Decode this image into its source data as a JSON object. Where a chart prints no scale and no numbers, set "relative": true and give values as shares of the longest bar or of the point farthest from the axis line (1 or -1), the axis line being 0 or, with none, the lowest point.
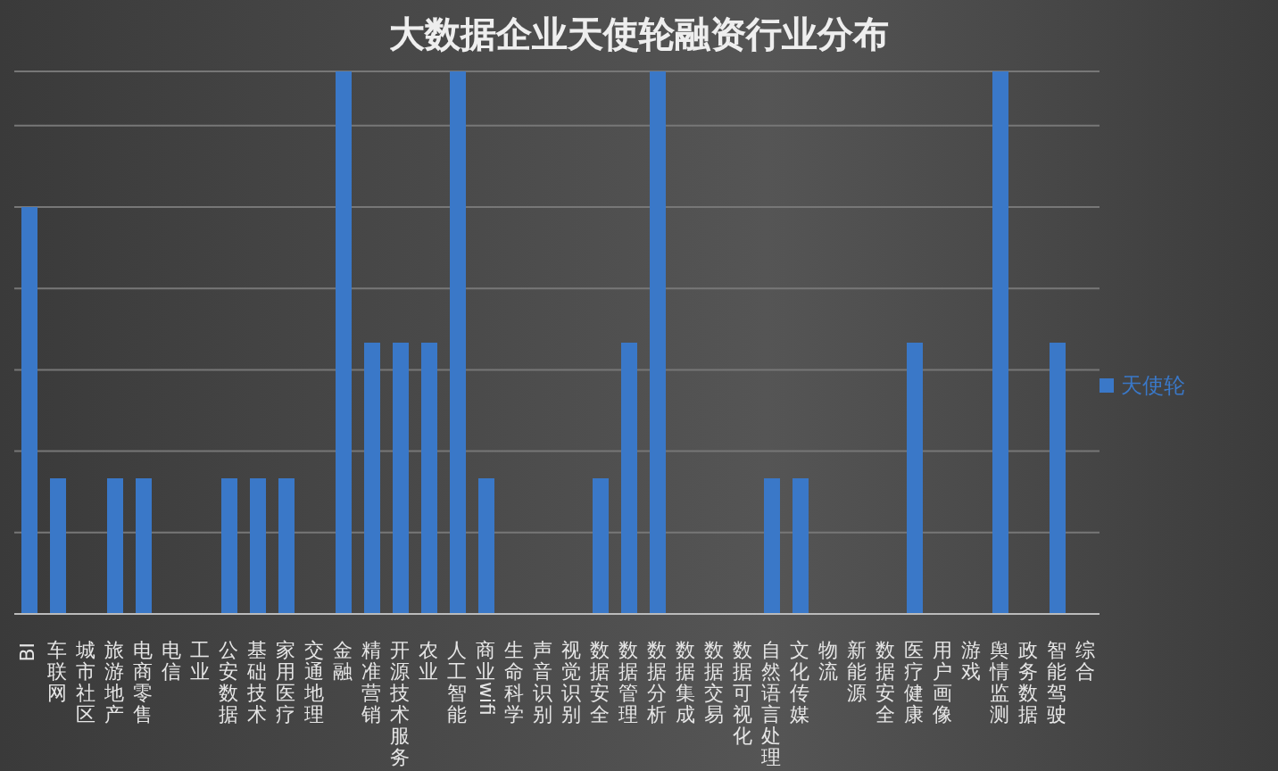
{
  "chart_data": {
    "type": "bar",
    "title": "大数据企业天使轮融资行业分布",
    "relative": true,
    "grid": "y",
    "legend": "right",
    "categories": [
      "BI",
      "车联网",
      "城市社区",
      "旅游地产",
      "电商零售",
      "电信",
      "工业",
      "公安数据",
      "基础技术",
      "家用医疗",
      "交通地理",
      "金融",
      "精准营销",
      "开源技术服务",
      "农业",
      "人工智能",
      "商业wifi",
      "生命科学",
      "声音识别",
      "视觉识别",
      "数据安全",
      "数据管理",
      "数据分析",
      "数据集成",
      "数据交易",
      "数据可视化",
      "自然语言处理",
      "文化传媒",
      "物流",
      "新能源",
      "数据安全",
      "医疗健康",
      "用户画像",
      "游戏",
      "舆情监测",
      "政务数据",
      "智能驾驶",
      "综合"
    ],
    "series": [
      {
        "name": "天使轮",
        "color": "#3a78c8",
        "values": [
          0.75,
          0.25,
          0,
          0.25,
          0.25,
          0,
          0,
          0.25,
          0.25,
          0.25,
          0,
          1,
          0.5,
          0.5,
          0.5,
          1,
          0.25,
          0,
          0,
          0,
          0.25,
          0.5,
          1,
          0,
          0,
          0,
          0.25,
          0.25,
          0,
          0,
          0,
          0.5,
          0,
          0,
          1,
          0,
          0.5,
          0
        ]
      }
    ]
  }
}
